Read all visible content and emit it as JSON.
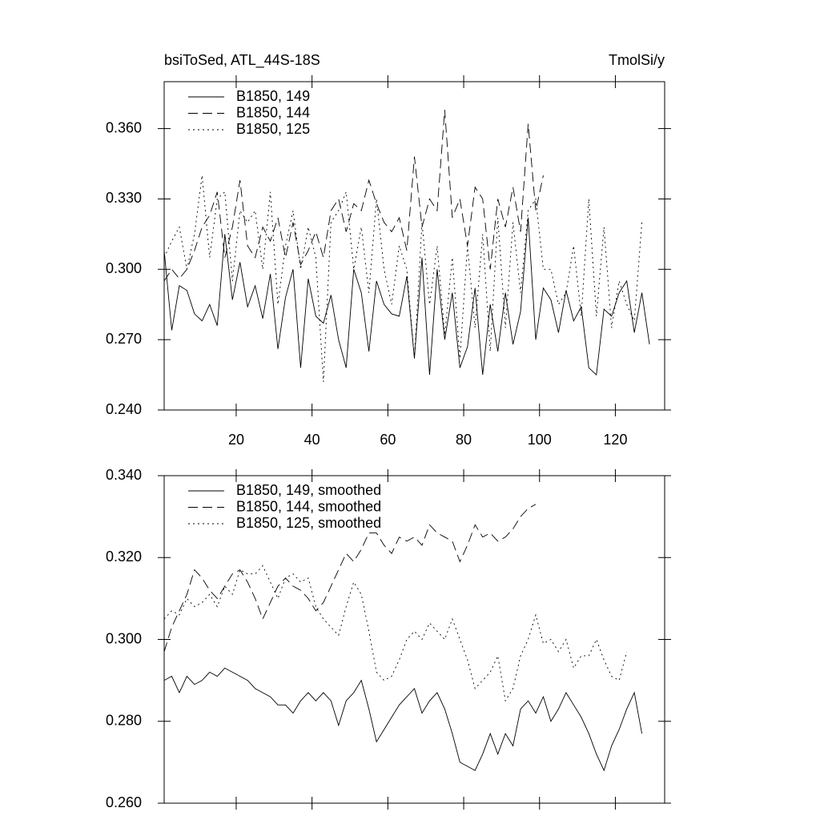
{
  "chart_data": [
    {
      "type": "line",
      "title": "bsiToSed, ATL_44S-18S",
      "units": "TmolSi/y",
      "x": [
        1,
        3,
        5,
        7,
        9,
        11,
        13,
        15,
        17,
        19,
        21,
        23,
        25,
        27,
        29,
        31,
        33,
        35,
        37,
        39,
        41,
        43,
        45,
        47,
        49,
        51,
        53,
        55,
        57,
        59,
        61,
        63,
        65,
        67,
        69,
        71,
        73,
        75,
        77,
        79,
        81,
        83,
        85,
        87,
        89,
        91,
        93,
        95,
        97,
        99,
        101,
        103,
        105,
        107,
        109,
        111,
        113,
        115,
        117,
        119,
        121,
        123,
        125,
        127,
        129
      ],
      "xlim": [
        1,
        133
      ],
      "xticks": [
        20,
        40,
        60,
        80,
        100,
        120
      ],
      "xticklabels": true,
      "ylim": [
        0.24,
        0.38
      ],
      "yticks": [
        {
          "value": 0.24,
          "label": "0.240"
        },
        {
          "value": 0.27,
          "label": "0.270"
        },
        {
          "value": 0.3,
          "label": "0.300"
        },
        {
          "value": 0.33,
          "label": "0.330"
        },
        {
          "value": 0.36,
          "label": "0.360"
        }
      ],
      "series": [
        {
          "name": "B1850, 149",
          "color": "#000000",
          "style": "solid",
          "values": [
            0.308,
            0.274,
            0.293,
            0.291,
            0.281,
            0.278,
            0.285,
            0.276,
            0.315,
            0.287,
            0.303,
            0.284,
            0.293,
            0.279,
            0.298,
            0.266,
            0.288,
            0.3,
            0.258,
            0.296,
            0.28,
            0.277,
            0.289,
            0.27,
            0.258,
            0.3,
            0.29,
            0.265,
            0.295,
            0.285,
            0.281,
            0.28,
            0.297,
            0.262,
            0.305,
            0.255,
            0.3,
            0.27,
            0.29,
            0.258,
            0.267,
            0.292,
            0.255,
            0.285,
            0.265,
            0.29,
            0.268,
            0.282,
            0.322,
            0.27,
            0.292,
            0.287,
            0.273,
            0.291,
            0.278,
            0.284,
            0.258,
            0.255,
            0.283,
            0.28,
            0.29,
            0.295,
            0.273,
            0.29,
            0.268
          ]
        },
        {
          "name": "B1850, 144",
          "color": "#000000",
          "style": "dashed",
          "values": [
            0.295,
            0.3,
            0.296,
            0.3,
            0.308,
            0.318,
            0.323,
            0.333,
            0.305,
            0.318,
            0.338,
            0.31,
            0.305,
            0.318,
            0.312,
            0.322,
            0.305,
            0.32,
            0.302,
            0.308,
            0.316,
            0.305,
            0.325,
            0.33,
            0.316,
            0.328,
            0.325,
            0.338,
            0.328,
            0.32,
            0.316,
            0.322,
            0.308,
            0.348,
            0.318,
            0.33,
            0.325,
            0.368,
            0.322,
            0.33,
            0.31,
            0.335,
            0.33,
            0.3,
            0.33,
            0.318,
            0.335,
            0.316,
            0.362,
            0.325,
            0.34,
            null,
            null,
            null,
            null,
            null,
            null,
            null,
            null,
            null,
            null,
            null,
            null,
            null,
            null
          ]
        },
        {
          "name": "B1850, 125",
          "color": "#000000",
          "style": "dotted",
          "values": [
            0.305,
            0.312,
            0.318,
            0.3,
            0.315,
            0.34,
            0.305,
            0.33,
            0.333,
            0.295,
            0.325,
            0.32,
            0.325,
            0.3,
            0.333,
            0.285,
            0.31,
            0.325,
            0.3,
            0.318,
            0.305,
            0.252,
            0.32,
            0.325,
            0.333,
            0.3,
            0.318,
            0.29,
            0.33,
            0.3,
            0.285,
            0.31,
            0.3,
            0.262,
            0.32,
            0.285,
            0.31,
            0.272,
            0.305,
            0.262,
            0.31,
            0.275,
            0.315,
            0.265,
            0.322,
            0.275,
            0.32,
            0.29,
            0.325,
            0.33,
            0.3,
            0.3,
            0.285,
            0.29,
            0.31,
            0.28,
            0.33,
            0.28,
            0.318,
            0.275,
            0.295,
            0.285,
            0.278,
            0.32,
            null
          ]
        }
      ]
    },
    {
      "type": "line",
      "x": [
        1,
        3,
        5,
        7,
        9,
        11,
        13,
        15,
        17,
        19,
        21,
        23,
        25,
        27,
        29,
        31,
        33,
        35,
        37,
        39,
        41,
        43,
        45,
        47,
        49,
        51,
        53,
        55,
        57,
        59,
        61,
        63,
        65,
        67,
        69,
        71,
        73,
        75,
        77,
        79,
        81,
        83,
        85,
        87,
        89,
        91,
        93,
        95,
        97,
        99,
        101,
        103,
        105,
        107,
        109,
        111,
        113,
        115,
        117,
        119,
        121,
        123,
        125,
        127,
        129
      ],
      "xlim": [
        1,
        133
      ],
      "xticks": [
        20,
        40,
        60,
        80,
        100,
        120
      ],
      "xticklabels": false,
      "ylim": [
        0.26,
        0.34
      ],
      "yticks": [
        {
          "value": 0.26,
          "label": "0.260"
        },
        {
          "value": 0.28,
          "label": "0.280"
        },
        {
          "value": 0.3,
          "label": "0.300"
        },
        {
          "value": 0.32,
          "label": "0.320"
        },
        {
          "value": 0.34,
          "label": "0.340"
        }
      ],
      "series": [
        {
          "name": "B1850, 149, smoothed",
          "color": "#000000",
          "style": "solid",
          "values": [
            0.29,
            0.291,
            0.287,
            0.291,
            0.289,
            0.29,
            0.292,
            0.291,
            0.293,
            0.292,
            0.291,
            0.29,
            0.288,
            0.287,
            0.286,
            0.284,
            0.284,
            0.282,
            0.285,
            0.287,
            0.285,
            0.287,
            0.285,
            0.279,
            0.285,
            0.287,
            0.29,
            0.283,
            0.275,
            0.278,
            0.281,
            0.284,
            0.286,
            0.288,
            0.282,
            0.285,
            0.287,
            0.283,
            0.277,
            0.27,
            0.269,
            0.268,
            0.272,
            0.277,
            0.272,
            0.277,
            0.274,
            0.283,
            0.285,
            0.282,
            0.286,
            0.28,
            0.283,
            0.287,
            0.284,
            0.281,
            0.277,
            0.272,
            0.268,
            0.274,
            0.278,
            0.283,
            0.287,
            0.277,
            null
          ]
        },
        {
          "name": "B1850, 144, smoothed",
          "color": "#000000",
          "style": "dashed",
          "values": [
            0.297,
            0.303,
            0.307,
            0.311,
            0.317,
            0.315,
            0.312,
            0.31,
            0.313,
            0.316,
            0.317,
            0.314,
            0.31,
            0.305,
            0.309,
            0.313,
            0.315,
            0.313,
            0.312,
            0.31,
            0.307,
            0.309,
            0.313,
            0.317,
            0.321,
            0.319,
            0.322,
            0.326,
            0.326,
            0.323,
            0.321,
            0.325,
            0.324,
            0.325,
            0.323,
            0.328,
            0.326,
            0.325,
            0.324,
            0.319,
            0.323,
            0.328,
            0.325,
            0.326,
            0.324,
            0.325,
            0.327,
            0.33,
            0.332,
            0.333,
            null,
            null,
            null,
            null,
            null,
            null,
            null,
            null,
            null,
            null,
            null,
            null,
            null,
            null,
            null
          ]
        },
        {
          "name": "B1850, 125, smoothed",
          "color": "#000000",
          "style": "dotted",
          "values": [
            0.305,
            0.307,
            0.306,
            0.31,
            0.308,
            0.309,
            0.311,
            0.308,
            0.313,
            0.311,
            0.317,
            0.316,
            0.316,
            0.318,
            0.314,
            0.31,
            0.315,
            0.316,
            0.314,
            0.315,
            0.308,
            0.305,
            0.303,
            0.301,
            0.308,
            0.314,
            0.311,
            0.302,
            0.292,
            0.29,
            0.291,
            0.295,
            0.3,
            0.302,
            0.3,
            0.304,
            0.302,
            0.3,
            0.305,
            0.3,
            0.295,
            0.288,
            0.29,
            0.292,
            0.296,
            0.285,
            0.288,
            0.296,
            0.3,
            0.306,
            0.299,
            0.3,
            0.297,
            0.3,
            0.293,
            0.296,
            0.296,
            0.3,
            0.295,
            0.291,
            0.29,
            0.297,
            null,
            null,
            null
          ]
        }
      ]
    }
  ]
}
